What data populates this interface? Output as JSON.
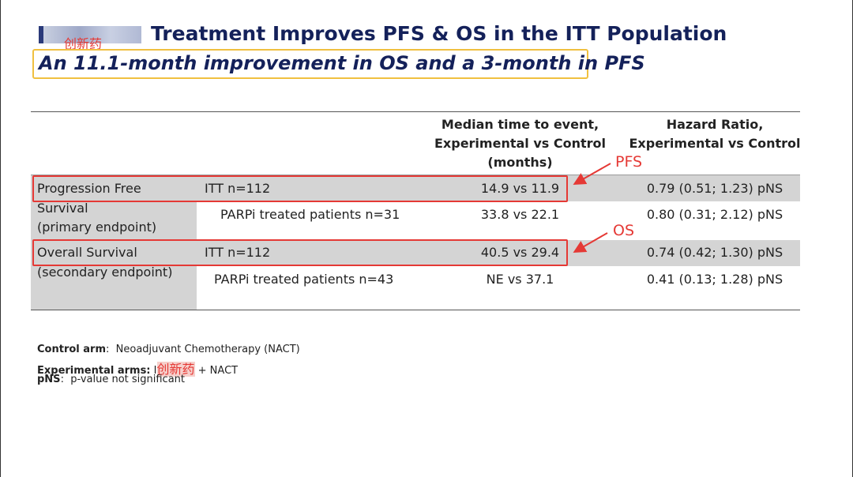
{
  "header": {
    "title": "Treatment Improves PFS & OS in the ITT Population",
    "subtitle": "An 11.1-month improvement in OS and a 3-month in PFS",
    "overlay_tag": "创新药"
  },
  "table": {
    "columns": [
      "",
      "",
      "Median time to event, Experimental vs Control (months)",
      "Hazard Ratio, Experimental vs Control"
    ],
    "col_median_lines": [
      "Median time to event,",
      "Experimental vs Control",
      "(months)"
    ],
    "col_hr_lines": [
      "Hazard Ratio,",
      "Experimental vs Control"
    ],
    "groups": [
      {
        "label_lines": [
          "Progression Free",
          "Survival",
          "(primary endpoint)"
        ],
        "rows": [
          {
            "population": "ITT n=112",
            "median": "14.9 vs 11.9",
            "hr": "0.79 (0.51; 1.23) pNS"
          },
          {
            "population": "PARPi treated patients n=31",
            "median": "33.8 vs 22.1",
            "hr": "0.80 (0.31; 2.12) pNS"
          }
        ]
      },
      {
        "label_lines": [
          "Overall Survival",
          "(secondary endpoint)"
        ],
        "rows": [
          {
            "population": "ITT n=112",
            "median": "40.5 vs 29.4",
            "hr": "0.74 (0.42; 1.30) pNS"
          },
          {
            "population": "PARPi treated patients n=43",
            "median": "NE vs 37.1",
            "hr": "0.41 (0.13; 1.28) pNS"
          }
        ]
      }
    ]
  },
  "annotations": {
    "pfs": "PFS",
    "os": "OS",
    "color": "#e53935"
  },
  "footnotes": [
    {
      "label": "Control arm",
      "text": "Neoadjuvant Chemotherapy (NACT)"
    },
    {
      "label": "Experimental arms:",
      "pre": "I",
      "tag": "创新药",
      "text": "+ NACT"
    },
    {
      "label": "pNS",
      "text": "p-value not significant"
    }
  ]
}
